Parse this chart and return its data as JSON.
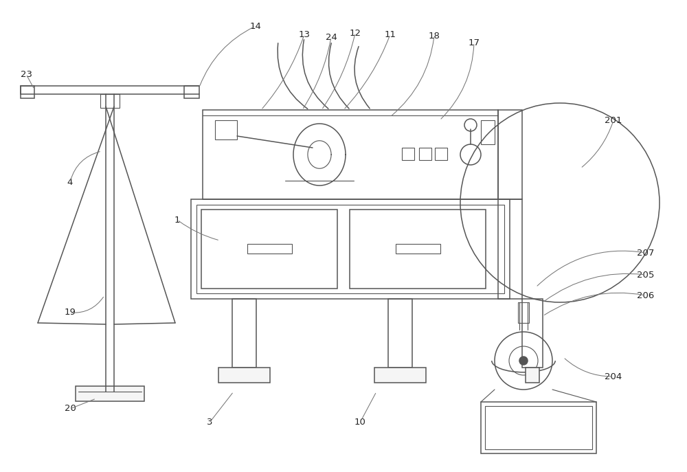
{
  "bg_color": "#ffffff",
  "lc": "#555555",
  "lc_light": "#888888",
  "label_color": "#222222",
  "lw": 1.1,
  "lw2": 0.8,
  "fs": 9.5,
  "figsize": [
    10.0,
    6.87
  ],
  "dpi": 100
}
